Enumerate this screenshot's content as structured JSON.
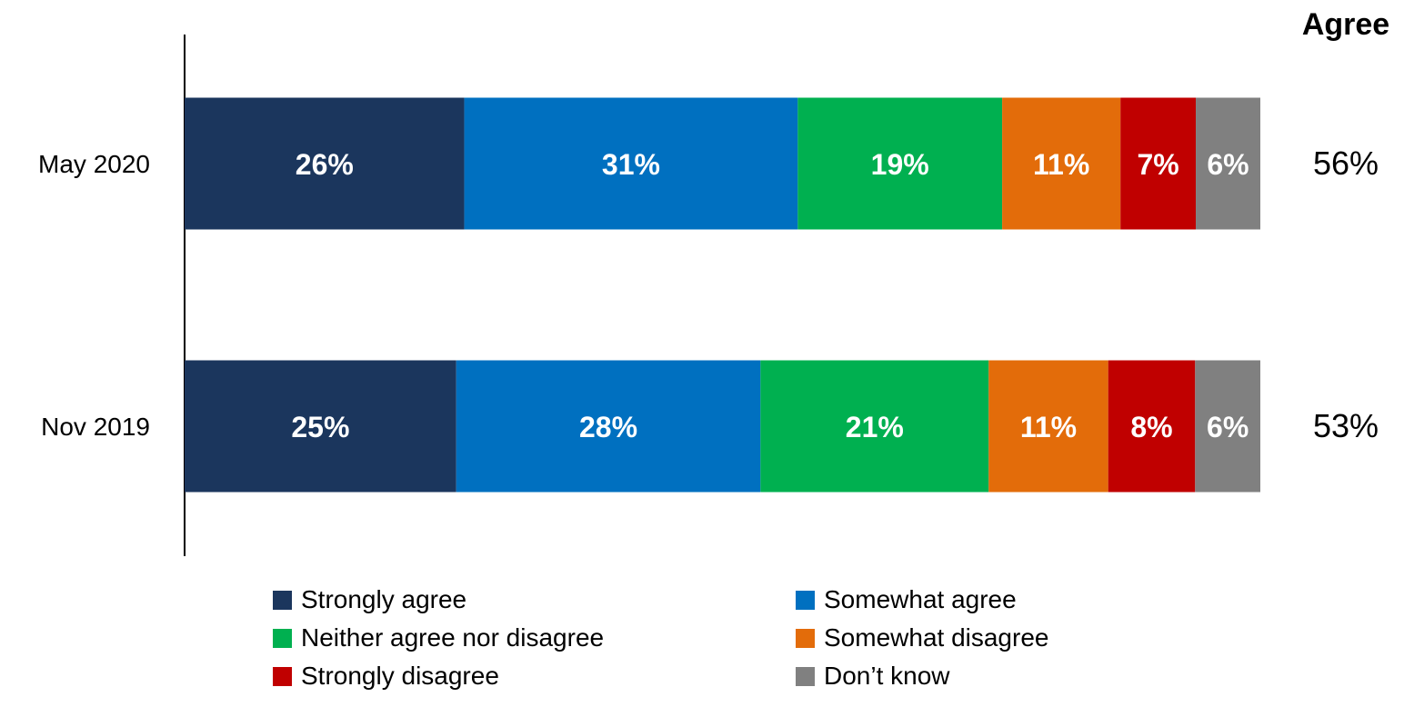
{
  "chart_data": {
    "type": "bar",
    "orientation": "horizontal",
    "stacked": true,
    "categories": [
      "May 2020",
      "Nov 2019"
    ],
    "series": [
      {
        "name": "Strongly agree",
        "color": "#1b365d",
        "values": [
          26,
          25
        ],
        "labels": [
          "26%",
          "25%"
        ]
      },
      {
        "name": "Somewhat agree",
        "color": "#0070c0",
        "values": [
          31,
          28
        ],
        "labels": [
          "31%",
          "28%"
        ]
      },
      {
        "name": "Neither agree nor disagree",
        "color": "#00b050",
        "values": [
          19,
          21
        ],
        "labels": [
          "19%",
          "21%"
        ]
      },
      {
        "name": "Somewhat disagree",
        "color": "#e36c0a",
        "values": [
          11,
          11
        ],
        "labels": [
          "11%",
          "11%"
        ]
      },
      {
        "name": "Strongly disagree",
        "color": "#c00000",
        "values": [
          7,
          8
        ],
        "labels": [
          "7%",
          "8%"
        ]
      },
      {
        "name": "Don’t know",
        "color": "#808080",
        "values": [
          6,
          6
        ],
        "labels": [
          "6%",
          "6%"
        ]
      }
    ],
    "side_column": {
      "header": "Agree",
      "values": [
        "56%",
        "53%"
      ]
    },
    "legend": {
      "position": "bottom",
      "columns": 2,
      "items": [
        "Strongly agree",
        "Somewhat agree",
        "Neither agree nor disagree",
        "Somewhat disagree",
        "Strongly disagree",
        "Don’t know"
      ]
    },
    "grid": false,
    "xlim": [
      0,
      100
    ]
  }
}
